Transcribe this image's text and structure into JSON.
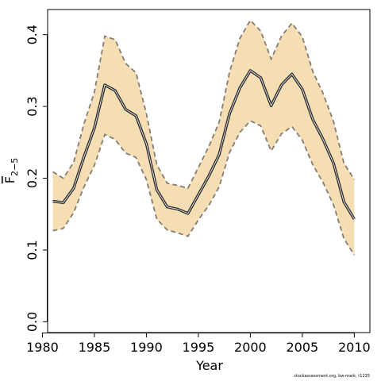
{
  "chart_data": {
    "type": "area",
    "xlabel": "Year",
    "ylabel_main": "F",
    "ylabel_sub": "2−5",
    "xlim": [
      1980.5,
      2011.5
    ],
    "ylim": [
      -0.015,
      0.435
    ],
    "x_ticks": [
      1980,
      1985,
      1990,
      1995,
      2000,
      2005,
      2010
    ],
    "y_ticks": [
      0.0,
      0.1,
      0.2,
      0.3,
      0.4
    ],
    "y_tick_labels": [
      "0.0",
      "0.1",
      "0.2",
      "0.3",
      "0.4"
    ],
    "x": [
      1981,
      1982,
      1983,
      1984,
      1985,
      1986,
      1987,
      1988,
      1989,
      1990,
      1991,
      1992,
      1993,
      1994,
      1995,
      1996,
      1997,
      1998,
      1999,
      2000,
      2001,
      2002,
      2003,
      2004,
      2005,
      2006,
      2007,
      2008,
      2009,
      2010
    ],
    "series": [
      {
        "role": "estimate",
        "values": [
          0.168,
          0.166,
          0.186,
          0.23,
          0.27,
          0.33,
          0.322,
          0.296,
          0.287,
          0.248,
          0.184,
          0.16,
          0.157,
          0.151,
          0.177,
          0.203,
          0.233,
          0.29,
          0.326,
          0.35,
          0.34,
          0.301,
          0.33,
          0.345,
          0.324,
          0.282,
          0.254,
          0.221,
          0.167,
          0.143
        ]
      },
      {
        "role": "upper_bound",
        "values": [
          0.209,
          0.2,
          0.222,
          0.276,
          0.32,
          0.398,
          0.393,
          0.36,
          0.347,
          0.29,
          0.219,
          0.193,
          0.19,
          0.186,
          0.215,
          0.244,
          0.278,
          0.348,
          0.395,
          0.42,
          0.405,
          0.366,
          0.398,
          0.416,
          0.397,
          0.349,
          0.318,
          0.279,
          0.221,
          0.198
        ]
      },
      {
        "role": "lower_bound",
        "values": [
          0.127,
          0.13,
          0.152,
          0.188,
          0.218,
          0.261,
          0.254,
          0.235,
          0.229,
          0.198,
          0.143,
          0.128,
          0.124,
          0.119,
          0.142,
          0.162,
          0.188,
          0.236,
          0.264,
          0.28,
          0.273,
          0.238,
          0.262,
          0.272,
          0.253,
          0.219,
          0.194,
          0.163,
          0.116,
          0.093
        ]
      }
    ],
    "colors": {
      "band": "#f5deb3",
      "band_edge": "#857c72",
      "line_outer": "#2b2b2b",
      "line_inner": "#ffffff"
    },
    "grid": false
  },
  "footer": "stockassessment.org, bw-mark, r1235"
}
